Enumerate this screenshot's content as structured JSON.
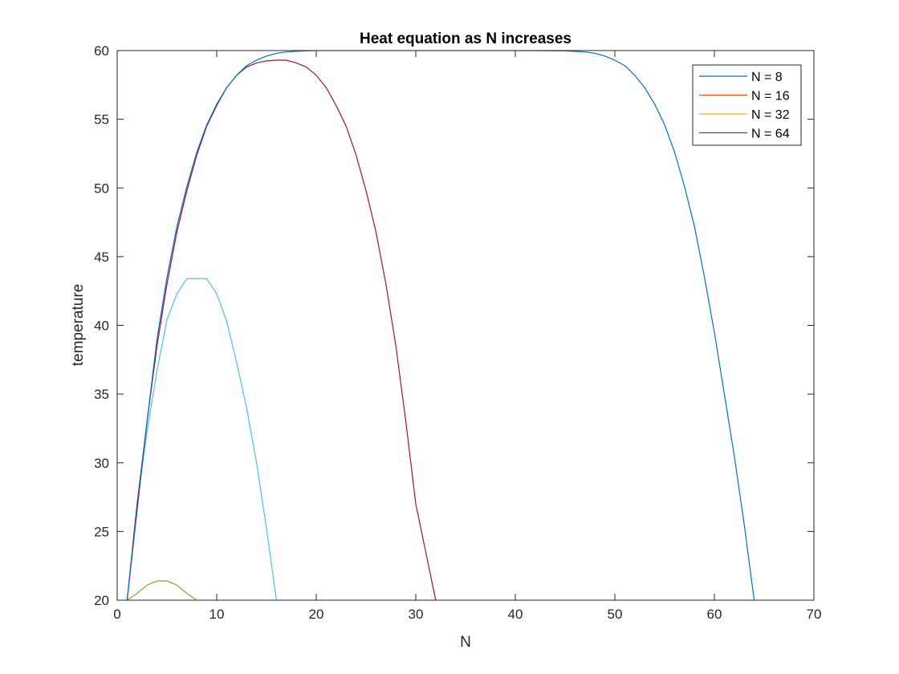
{
  "chart_data": {
    "type": "line",
    "title": "Heat equation as N increases",
    "xlabel": "N",
    "ylabel": "temperature",
    "xlim": [
      0,
      70
    ],
    "ylim": [
      20,
      60
    ],
    "xticks": [
      0,
      10,
      20,
      30,
      40,
      50,
      60,
      70
    ],
    "yticks": [
      20,
      25,
      30,
      35,
      40,
      45,
      50,
      55,
      60
    ],
    "grid": false,
    "legend_position": "top-right",
    "legend": [
      {
        "label": "N = 8",
        "color": "#0072BD"
      },
      {
        "label": "N = 16",
        "color": "#D95319"
      },
      {
        "label": "N = 32",
        "color": "#EDB120"
      },
      {
        "label": "N = 64",
        "color": "#7E2F8E"
      }
    ],
    "series": [
      {
        "color": "#77AC30",
        "points": [
          [
            1,
            20
          ],
          [
            2,
            20.5
          ],
          [
            3,
            21.1
          ],
          [
            4,
            21.4
          ],
          [
            5,
            21.4
          ],
          [
            6,
            21.1
          ],
          [
            7,
            20.5
          ],
          [
            8,
            20
          ]
        ]
      },
      {
        "color": "#4DBEEE",
        "points": [
          [
            1,
            20
          ],
          [
            2,
            27
          ],
          [
            3,
            32.3
          ],
          [
            4,
            36.7
          ],
          [
            5,
            40.4
          ],
          [
            6,
            42.3
          ],
          [
            7,
            43.4
          ],
          [
            8,
            43.4
          ],
          [
            9,
            43.4
          ],
          [
            10,
            42.3
          ],
          [
            11,
            40.3
          ],
          [
            12,
            37.3
          ],
          [
            13,
            34
          ],
          [
            14,
            30
          ],
          [
            15,
            25.2
          ],
          [
            16,
            20
          ]
        ]
      },
      {
        "color": "#A2142F",
        "points": [
          [
            1,
            20
          ],
          [
            2,
            27
          ],
          [
            3,
            33
          ],
          [
            4,
            38.5
          ],
          [
            5,
            43
          ],
          [
            6,
            46.8
          ],
          [
            7,
            49.8
          ],
          [
            8,
            52.4
          ],
          [
            9,
            54.5
          ],
          [
            10,
            56
          ],
          [
            11,
            57.3
          ],
          [
            12,
            58.2
          ],
          [
            13,
            58.8
          ],
          [
            14,
            59.1
          ],
          [
            15,
            59.25
          ],
          [
            16,
            59.3
          ],
          [
            17,
            59.3
          ],
          [
            18,
            59.1
          ],
          [
            19,
            58.8
          ],
          [
            20,
            58.2
          ],
          [
            21,
            57.3
          ],
          [
            22,
            56
          ],
          [
            23,
            54.5
          ],
          [
            24,
            52.4
          ],
          [
            25,
            49.8
          ],
          [
            26,
            46.8
          ],
          [
            27,
            43
          ],
          [
            28,
            38.5
          ],
          [
            29,
            33
          ],
          [
            30,
            27
          ],
          [
            31,
            23.5
          ],
          [
            32,
            20
          ]
        ]
      },
      {
        "color": "#0072BD",
        "points": [
          [
            1,
            20
          ],
          [
            2,
            26.5
          ],
          [
            3,
            33
          ],
          [
            4,
            39
          ],
          [
            5,
            43.5
          ],
          [
            6,
            47.2
          ],
          [
            7,
            50.1
          ],
          [
            8,
            52.6
          ],
          [
            9,
            54.6
          ],
          [
            10,
            56.1
          ],
          [
            11,
            57.3
          ],
          [
            12,
            58.2
          ],
          [
            13,
            58.9
          ],
          [
            14,
            59.3
          ],
          [
            15,
            59.6
          ],
          [
            16,
            59.8
          ],
          [
            17,
            59.9
          ],
          [
            18,
            59.95
          ],
          [
            20,
            60
          ],
          [
            30,
            60
          ],
          [
            40,
            60
          ],
          [
            45,
            59.98
          ],
          [
            47,
            59.9
          ],
          [
            48,
            59.8
          ],
          [
            49,
            59.6
          ],
          [
            50,
            59.3
          ],
          [
            51,
            58.9
          ],
          [
            52,
            58.2
          ],
          [
            53,
            57.3
          ],
          [
            54,
            56.1
          ],
          [
            55,
            54.6
          ],
          [
            56,
            52.6
          ],
          [
            57,
            50.1
          ],
          [
            58,
            47.2
          ],
          [
            59,
            43.5
          ],
          [
            60,
            39.5
          ],
          [
            61,
            35
          ],
          [
            62,
            30.5
          ],
          [
            63,
            25.5
          ],
          [
            64,
            20
          ]
        ]
      }
    ]
  }
}
